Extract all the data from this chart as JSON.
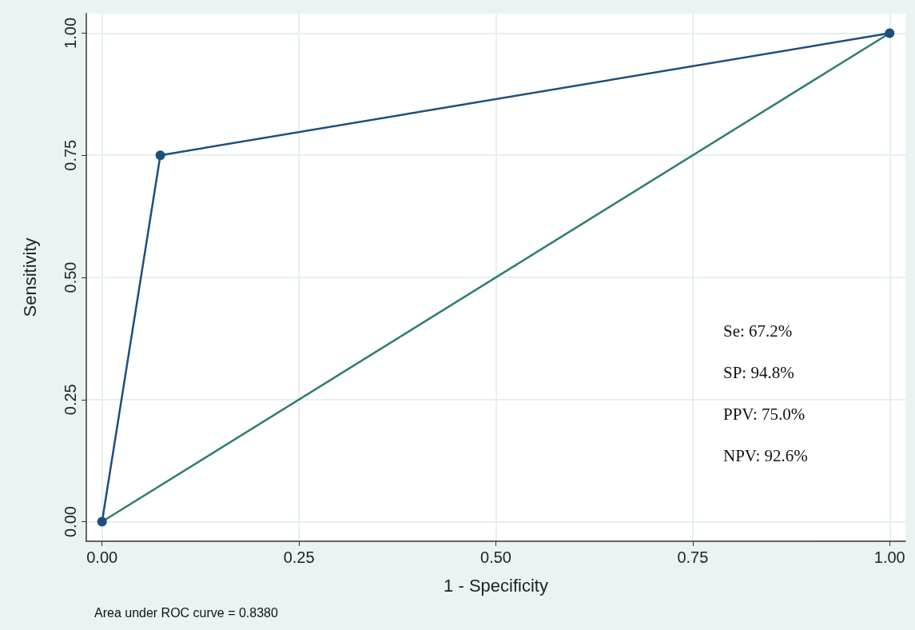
{
  "chart_data": {
    "type": "line",
    "xlabel": "1 - Specificity",
    "ylabel": "Sensitivity",
    "series": [
      {
        "color": "#1b4f7e",
        "marker": "circle",
        "x": [
          0,
          0.074,
          1
        ],
        "values": [
          0,
          0.75,
          1
        ]
      },
      {
        "color": "#2e7d74",
        "marker": "none",
        "x": [
          0,
          1
        ],
        "values": [
          0,
          1
        ]
      }
    ],
    "xlim": [
      -0.02,
      1.02
    ],
    "ylim": [
      -0.04,
      1.04
    ],
    "xticks": [
      {
        "value": 0,
        "label": "0.00"
      },
      {
        "value": 0.25,
        "label": "0.25"
      },
      {
        "value": 0.5,
        "label": "0.50"
      },
      {
        "value": 0.75,
        "label": "0.75"
      },
      {
        "value": 1,
        "label": "1.00"
      }
    ],
    "yticks": [
      {
        "value": 0,
        "label": "0.00"
      },
      {
        "value": 0.25,
        "label": "0.25"
      },
      {
        "value": 0.5,
        "label": "0.50"
      },
      {
        "value": 0.75,
        "label": "0.75"
      },
      {
        "value": 1,
        "label": "1.00"
      }
    ],
    "grid": true,
    "line_style": "solid",
    "annotations": [
      "Se: 67.2%",
      "SP: 94.8%",
      "PPV: 75.0%",
      "NPV: 92.6%",
      "Area under ROC curve = 0.8380"
    ]
  }
}
